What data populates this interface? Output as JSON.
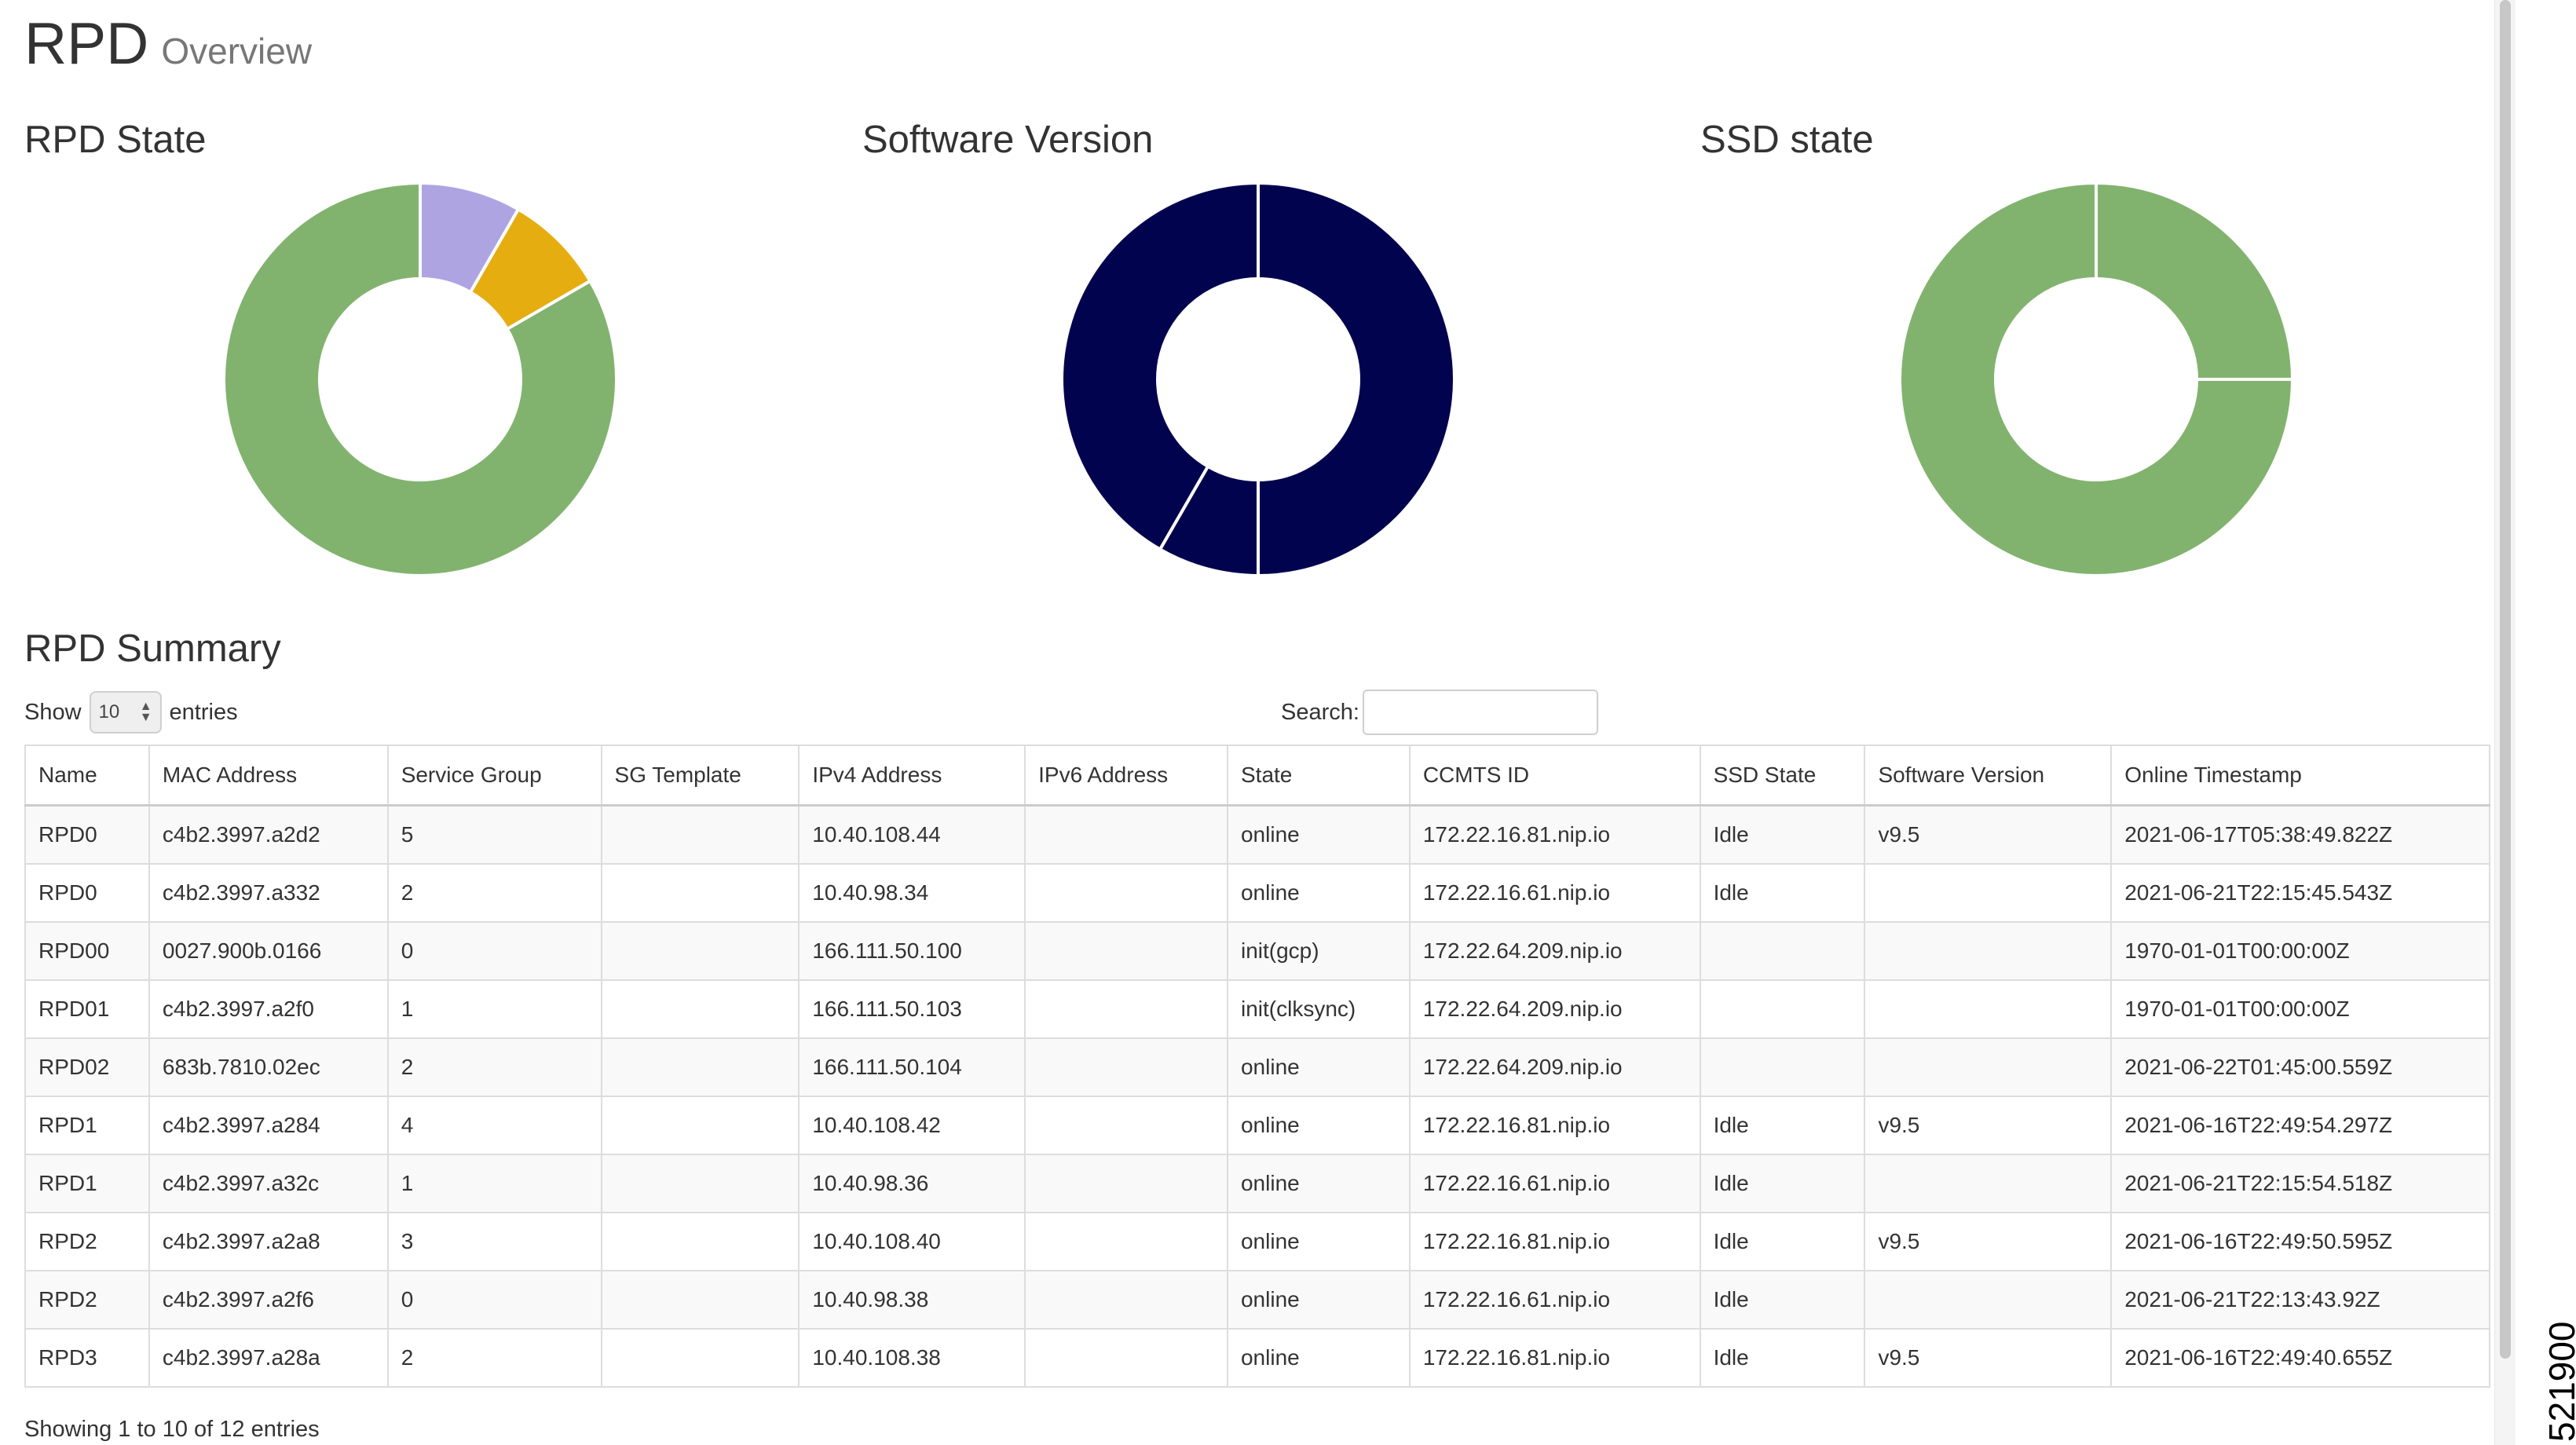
{
  "header": {
    "title": "RPD",
    "subtitle": "Overview"
  },
  "charts": [
    {
      "title": "RPD State",
      "colors": [
        "#aea4e2",
        "#e6ad10",
        "#82b36e"
      ],
      "fractions": [
        0.0833,
        0.0833,
        0.8334
      ]
    },
    {
      "title": "Software Version",
      "colors": [
        "#02034f",
        "#02034f",
        "#02034f"
      ],
      "fractions": [
        0.5,
        0.0833,
        0.4167
      ]
    },
    {
      "title": "SSD state",
      "colors": [
        "#82b36e",
        "#82b36e"
      ],
      "fractions": [
        0.25,
        0.75
      ]
    }
  ],
  "summary": {
    "title": "RPD Summary",
    "show_label": "Show",
    "entries_value": "10",
    "entries_label": "entries",
    "search_label": "Search:",
    "search_value": "",
    "columns": [
      "Name",
      "MAC Address",
      "Service Group",
      "SG Template",
      "IPv4 Address",
      "IPv6 Address",
      "State",
      "CCMTS ID",
      "SSD State",
      "Software Version",
      "Online Timestamp"
    ],
    "rows": [
      [
        "RPD0",
        "c4b2.3997.a2d2",
        "5",
        "",
        "10.40.108.44",
        "",
        "online",
        "172.22.16.81.nip.io",
        "Idle",
        "v9.5",
        "2021-06-17T05:38:49.822Z"
      ],
      [
        "RPD0",
        "c4b2.3997.a332",
        "2",
        "",
        "10.40.98.34",
        "",
        "online",
        "172.22.16.61.nip.io",
        "Idle",
        "",
        "2021-06-21T22:15:45.543Z"
      ],
      [
        "RPD00",
        "0027.900b.0166",
        "0",
        "",
        "166.111.50.100",
        "",
        "init(gcp)",
        "172.22.64.209.nip.io",
        "",
        "",
        "1970-01-01T00:00:00Z"
      ],
      [
        "RPD01",
        "c4b2.3997.a2f0",
        "1",
        "",
        "166.111.50.103",
        "",
        "init(clksync)",
        "172.22.64.209.nip.io",
        "",
        "",
        "1970-01-01T00:00:00Z"
      ],
      [
        "RPD02",
        "683b.7810.02ec",
        "2",
        "",
        "166.111.50.104",
        "",
        "online",
        "172.22.64.209.nip.io",
        "",
        "",
        "2021-06-22T01:45:00.559Z"
      ],
      [
        "RPD1",
        "c4b2.3997.a284",
        "4",
        "",
        "10.40.108.42",
        "",
        "online",
        "172.22.16.81.nip.io",
        "Idle",
        "v9.5",
        "2021-06-16T22:49:54.297Z"
      ],
      [
        "RPD1",
        "c4b2.3997.a32c",
        "1",
        "",
        "10.40.98.36",
        "",
        "online",
        "172.22.16.61.nip.io",
        "Idle",
        "",
        "2021-06-21T22:15:54.518Z"
      ],
      [
        "RPD2",
        "c4b2.3997.a2a8",
        "3",
        "",
        "10.40.108.40",
        "",
        "online",
        "172.22.16.81.nip.io",
        "Idle",
        "v9.5",
        "2021-06-16T22:49:50.595Z"
      ],
      [
        "RPD2",
        "c4b2.3997.a2f6",
        "0",
        "",
        "10.40.98.38",
        "",
        "online",
        "172.22.16.61.nip.io",
        "Idle",
        "",
        "2021-06-21T22:13:43.92Z"
      ],
      [
        "RPD3",
        "c4b2.3997.a28a",
        "2",
        "",
        "10.40.108.38",
        "",
        "online",
        "172.22.16.81.nip.io",
        "Idle",
        "v9.5",
        "2021-06-16T22:49:40.655Z"
      ]
    ],
    "info": "Showing 1 to 10 of 12 entries"
  },
  "side_number": "521900"
}
